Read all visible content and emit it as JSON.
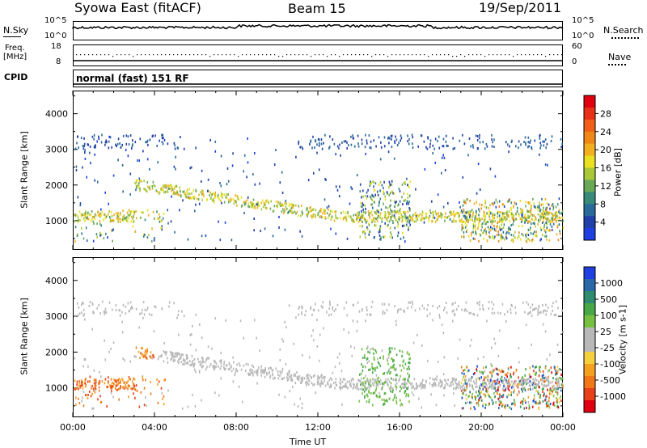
{
  "header": {
    "station": "Syowa East (fitACF)",
    "beam": "Beam 15",
    "date": "19/Sep/2011"
  },
  "top_panels": {
    "nsky_label": "N.Sky",
    "nsearch_label": "N.Search",
    "nsky_ticks": [
      "10^5",
      "10^0"
    ],
    "nsearch_ticks": [
      "10^5",
      "10^0"
    ],
    "freq_label": "Freq.",
    "freq_unit": "[MHz]",
    "freq_ticks": [
      "18",
      "8"
    ],
    "nave_label": "Nave",
    "nave_ticks": [
      "60",
      "0"
    ],
    "cpid_label": "CPID",
    "cpid_text": "normal (fast) 151 RF"
  },
  "chart_data": [
    {
      "type": "heatmap",
      "title": "",
      "quantity": "Power",
      "ylabel": "Slant Range [km]",
      "ylim": [
        180,
        4650
      ],
      "yticks": [
        1000,
        2000,
        3000,
        4000
      ],
      "xlim": [
        0,
        24
      ],
      "colorbar": {
        "label": "Power [dB]",
        "ticks": [
          "4",
          "8",
          "12",
          "16",
          "20",
          "24",
          "28"
        ],
        "colors": [
          "#1f3fe0",
          "#203fa8",
          "#2a6a9a",
          "#3a8a7a",
          "#6aa858",
          "#a8c83a",
          "#e8e020",
          "#f2b020",
          "#f08818",
          "#f06018",
          "#e83018",
          "#e00010"
        ]
      }
    },
    {
      "type": "heatmap",
      "title": "",
      "quantity": "Velocity",
      "ylabel": "Slant Range [km]",
      "ylim": [
        180,
        4650
      ],
      "yticks": [
        1000,
        2000,
        3000,
        4000
      ],
      "xlim": [
        0,
        24
      ],
      "xticks": [
        "00:00",
        "04:00",
        "08:00",
        "12:00",
        "16:00",
        "20:00",
        "00:00"
      ],
      "xlabel": "Time UT",
      "colorbar": {
        "label": "Velocity [m s-1]",
        "ticks": [
          "1000",
          "500",
          "100",
          "25",
          "-25",
          "-100",
          "-500",
          "-1000"
        ],
        "colors": [
          "#1f3fe0",
          "#2a68a8",
          "#2e8a70",
          "#48a848",
          "#78c040",
          "#b8b8b8",
          "#b8b8b8",
          "#f4d040",
          "#f4a020",
          "#f07818",
          "#e84018",
          "#e00010"
        ]
      }
    }
  ]
}
